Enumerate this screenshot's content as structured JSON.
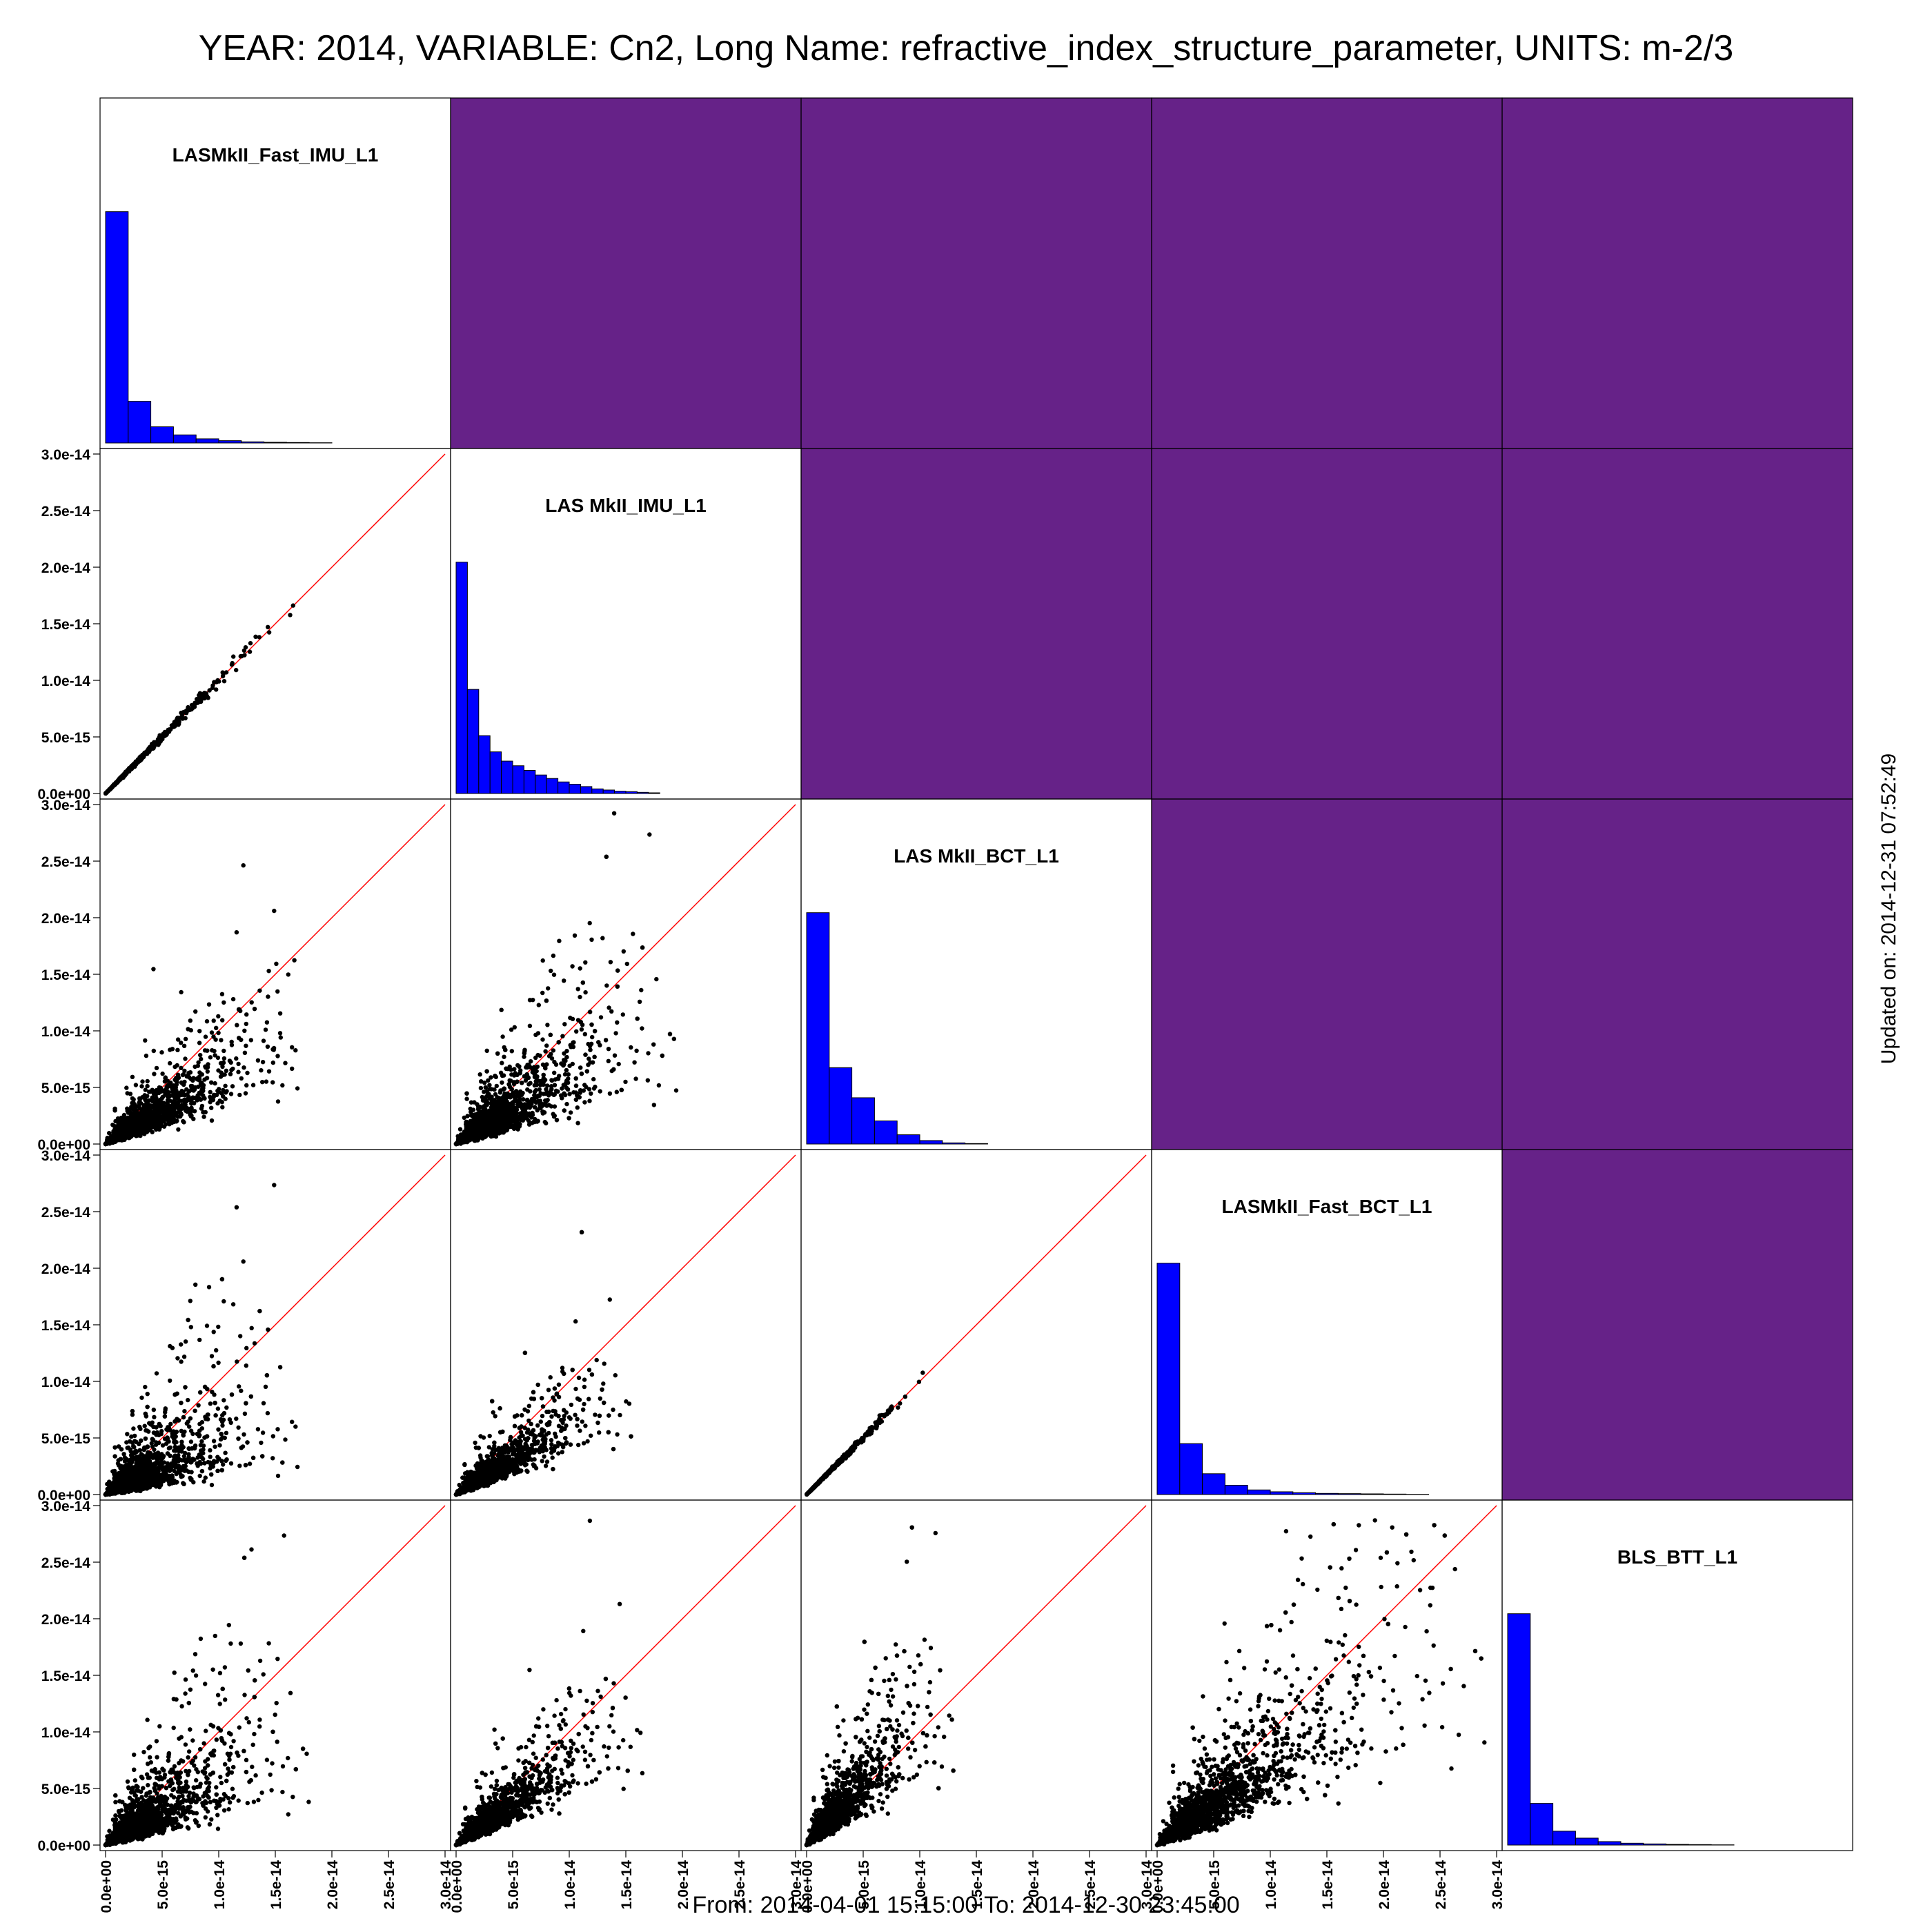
{
  "title": "YEAR: 2014, VARIABLE: Cn2, Long Name: refractive_index_structure_parameter, UNITS: m-2/3",
  "footer": "From: 2014-04-01 15:15:00 To: 2014-12-30 23:45:00",
  "updated": "Updated on: 2014-12-31 07:52:49",
  "colors": {
    "upper_panel": "#662288",
    "histogram": "#0000ff",
    "points": "#000000",
    "identity_line": "#ff0000"
  },
  "chart_data": {
    "type": "scatter-matrix",
    "variables": [
      "LASMkII_Fast_IMU_L1",
      "LAS MkII_IMU_L1",
      "LAS MkII_BCT_L1",
      "LASMkII_Fast_BCT_L1",
      "BLS_BTT_L1"
    ],
    "axis_range": [
      0,
      3e-14
    ],
    "tick_values": [
      0,
      5e-15,
      1e-14,
      1.5e-14,
      2e-14,
      2.5e-14,
      3e-14
    ],
    "tick_labels": [
      "0.0e+00",
      "5.0e-15",
      "1.0e-14",
      "1.5e-14",
      "2.0e-14",
      "2.5e-14",
      "3.0e-14"
    ],
    "identity_line": true,
    "upper_triangle": "blank",
    "histograms": [
      {
        "variable": "LASMkII_Fast_IMU_L1",
        "bin_width": 2e-15,
        "relative_counts": [
          1.0,
          0.18,
          0.07,
          0.035,
          0.018,
          0.01,
          0.005,
          0.003,
          0.002,
          0.001
        ]
      },
      {
        "variable": "LAS MkII_IMU_L1",
        "bin_width": 1e-15,
        "relative_counts": [
          1.0,
          0.45,
          0.25,
          0.18,
          0.14,
          0.12,
          0.1,
          0.08,
          0.065,
          0.05,
          0.04,
          0.03,
          0.02,
          0.015,
          0.01,
          0.008,
          0.005,
          0.003
        ]
      },
      {
        "variable": "LAS MkII_BCT_L1",
        "bin_width": 2e-15,
        "relative_counts": [
          1.0,
          0.33,
          0.2,
          0.1,
          0.04,
          0.015,
          0.005,
          0.002
        ]
      },
      {
        "variable": "LASMkII_Fast_BCT_L1",
        "bin_width": 2e-15,
        "relative_counts": [
          1.0,
          0.22,
          0.09,
          0.04,
          0.02,
          0.012,
          0.008,
          0.005,
          0.004,
          0.003,
          0.002,
          0.001
        ]
      },
      {
        "variable": "BLS_BTT_L1",
        "bin_width": 2e-15,
        "relative_counts": [
          1.0,
          0.18,
          0.06,
          0.03,
          0.015,
          0.008,
          0.005,
          0.003,
          0.002,
          0.001
        ]
      }
    ],
    "scatter_panels": [
      {
        "x": "LASMkII_Fast_IMU_L1",
        "y": "LAS MkII_IMU_L1",
        "shape": "tight",
        "slope": 1.0,
        "spread": 0.03,
        "x_max": 1.7e-14
      },
      {
        "x": "LASMkII_Fast_IMU_L1",
        "y": "LAS MkII_BCT_L1",
        "shape": "spread",
        "slope": 0.6,
        "spread": 0.35,
        "x_max": 1.7e-14
      },
      {
        "x": "LAS MkII_IMU_L1",
        "y": "LAS MkII_BCT_L1",
        "shape": "spread",
        "slope": 0.62,
        "spread": 0.45,
        "x_max": 1.95e-14
      },
      {
        "x": "LASMkII_Fast_IMU_L1",
        "y": "LASMkII_Fast_BCT_L1",
        "shape": "spread",
        "slope": 0.5,
        "spread": 0.6,
        "x_max": 1.7e-14
      },
      {
        "x": "LAS MkII_IMU_L1",
        "y": "LASMkII_Fast_BCT_L1",
        "shape": "spread",
        "slope": 0.62,
        "spread": 0.3,
        "x_max": 1.55e-14
      },
      {
        "x": "LAS MkII_BCT_L1",
        "y": "LASMkII_Fast_BCT_L1",
        "shape": "tight",
        "slope": 1.0,
        "spread": 0.03,
        "x_max": 1.1e-14
      },
      {
        "x": "LASMkII_Fast_IMU_L1",
        "y": "BLS_BTT_L1",
        "shape": "spread",
        "slope": 0.6,
        "spread": 0.5,
        "x_max": 1.8e-14
      },
      {
        "x": "LAS MkII_IMU_L1",
        "y": "BLS_BTT_L1",
        "shape": "spread",
        "slope": 0.72,
        "spread": 0.3,
        "x_max": 1.65e-14
      },
      {
        "x": "LAS MkII_BCT_L1",
        "y": "BLS_BTT_L1",
        "shape": "spread",
        "slope": 1.05,
        "spread": 0.35,
        "x_max": 1.3e-14
      },
      {
        "x": "LASMkII_Fast_BCT_L1",
        "y": "BLS_BTT_L1",
        "shape": "spread",
        "slope": 0.72,
        "spread": 0.4,
        "x_max": 2.9e-14
      }
    ]
  }
}
